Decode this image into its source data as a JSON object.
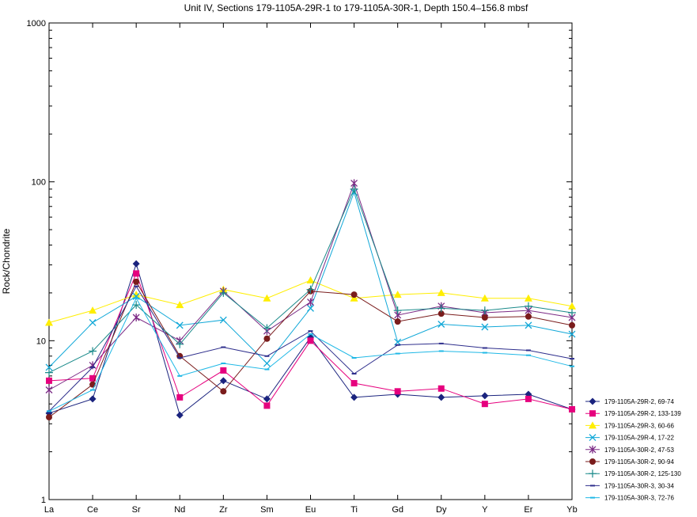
{
  "chart_data": {
    "type": "line",
    "title": "Unit IV, Sections 179-1105A-29R-1 to 179-1105A-30R-1, Depth 150.4–156.8 mbsf",
    "xlabel": "",
    "ylabel": "Rock/Chondrite",
    "y_scale": "log",
    "ylim": [
      1,
      1000
    ],
    "y_ticks": [
      "1",
      "10",
      "100",
      "1000"
    ],
    "grid": false,
    "legend_position": "right",
    "categories": [
      "La",
      "Ce",
      "Sr",
      "Nd",
      "Zr",
      "Sm",
      "Eu",
      "Ti",
      "Gd",
      "Dy",
      "Y",
      "Er",
      "Yb"
    ],
    "series": [
      {
        "name": "179-1105A-29R-2, 69-74",
        "color": "#1a237e",
        "marker": "diamond",
        "values": [
          3.5,
          4.3,
          30.5,
          3.4,
          5.6,
          4.3,
          10.5,
          4.4,
          4.6,
          4.4,
          4.5,
          4.6,
          3.7
        ]
      },
      {
        "name": "179-1105A-29R-2, 133-139",
        "color": "#e6007e",
        "marker": "square",
        "values": [
          5.6,
          5.8,
          26.5,
          4.4,
          6.5,
          3.9,
          10.0,
          5.4,
          4.8,
          5.0,
          4.0,
          4.3,
          3.7
        ]
      },
      {
        "name": "179-1105A-29R-3, 60-66",
        "color": "#ffee00",
        "marker": "triangle",
        "values": [
          13.0,
          15.5,
          19.5,
          16.8,
          21.0,
          18.5,
          24.0,
          18.5,
          19.5,
          20.0,
          18.5,
          18.5,
          16.5
        ]
      },
      {
        "name": "179-1105A-29R-4, 17-22",
        "color": "#11a8d8",
        "marker": "x",
        "values": [
          6.8,
          13.0,
          19.0,
          12.5,
          13.5,
          7.2,
          16.0,
          86.0,
          9.8,
          12.7,
          12.2,
          12.5,
          11.0
        ]
      },
      {
        "name": "179-1105A-30R-2, 47-53",
        "color": "#7b2a85",
        "marker": "star",
        "values": [
          4.9,
          7.0,
          14.0,
          10.0,
          20.5,
          11.5,
          17.5,
          98.0,
          14.5,
          16.5,
          15.0,
          15.5,
          14.0
        ]
      },
      {
        "name": "179-1105A-30R-2, 90-94",
        "color": "#7a1c1c",
        "marker": "circle",
        "values": [
          3.3,
          5.3,
          23.5,
          8.0,
          4.8,
          10.3,
          20.5,
          19.5,
          13.2,
          14.8,
          14.0,
          14.2,
          12.5
        ]
      },
      {
        "name": "179-1105A-30R-2, 125-130",
        "color": "#1a8a8a",
        "marker": "plus",
        "values": [
          6.3,
          8.6,
          16.8,
          9.5,
          20.0,
          12.0,
          21.0,
          90.0,
          15.5,
          16.0,
          15.5,
          16.5,
          15.0
        ]
      },
      {
        "name": "179-1105A-30R-3, 30-34",
        "color": "#2e2e8c",
        "marker": "dash",
        "values": [
          3.6,
          6.8,
          22.0,
          7.8,
          9.1,
          8.0,
          11.5,
          6.2,
          9.4,
          9.6,
          9.0,
          8.7,
          7.7
        ]
      },
      {
        "name": "179-1105A-30R-3, 72-76",
        "color": "#1fb8e6",
        "marker": "dash",
        "values": [
          3.6,
          4.9,
          18.5,
          6.0,
          7.2,
          6.6,
          11.0,
          7.8,
          8.3,
          8.6,
          8.4,
          8.1,
          6.9
        ]
      }
    ]
  }
}
